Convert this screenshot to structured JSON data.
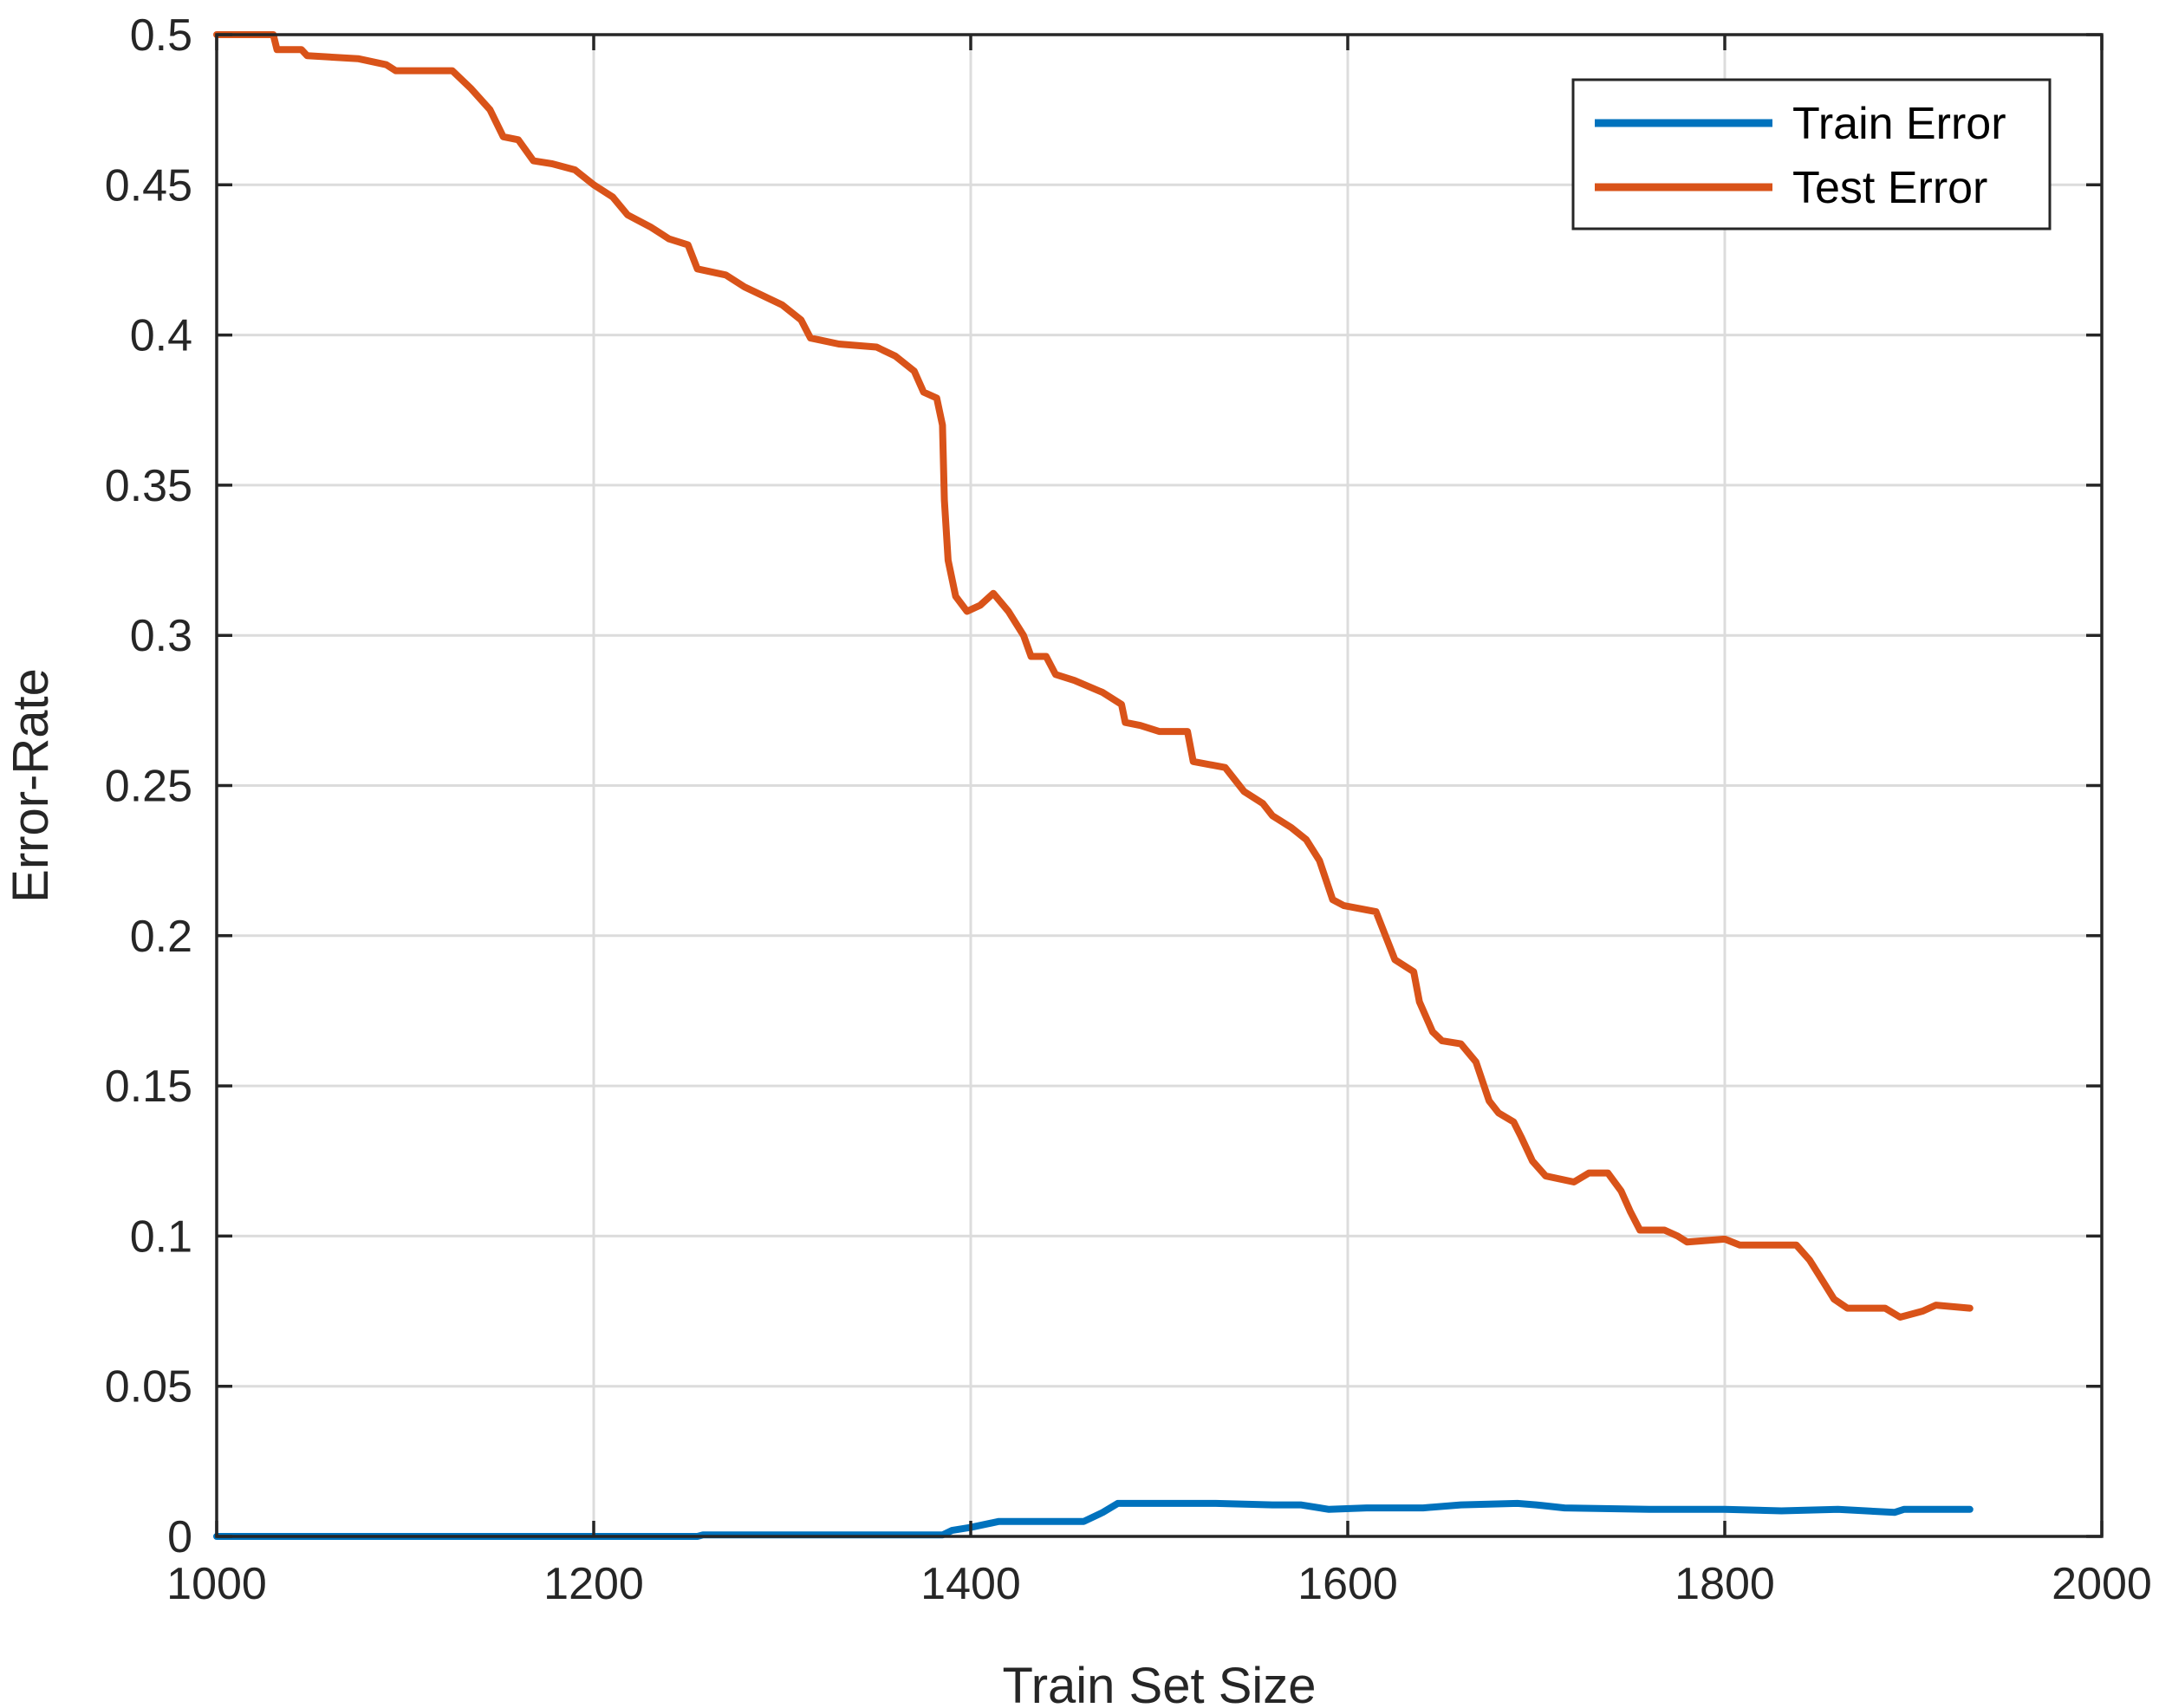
{
  "chart_data": {
    "type": "line",
    "title": "",
    "xlabel": "Train Set Size",
    "ylabel": "Error-Rate",
    "xlim": [
      1000,
      2000
    ],
    "ylim": [
      0,
      0.5
    ],
    "xticks": [
      1000,
      1200,
      1400,
      1600,
      1800,
      2000
    ],
    "yticks": [
      0,
      0.05,
      0.1,
      0.15,
      0.2,
      0.25,
      0.3,
      0.35,
      0.4,
      0.45,
      0.5
    ],
    "xtick_labels": [
      "1000",
      "1200",
      "1400",
      "1600",
      "1800",
      "2000"
    ],
    "ytick_labels": [
      "0",
      "0.05",
      "0.1",
      "0.15",
      "0.2",
      "0.25",
      "0.3",
      "0.35",
      "0.4",
      "0.45",
      "0.5"
    ],
    "grid": true,
    "legend_position": "top-right",
    "series": [
      {
        "name": "Train Error",
        "color": "#0072BD",
        "points": [
          [
            1000,
            0
          ],
          [
            1255,
            0
          ],
          [
            1258,
            0.0005
          ],
          [
            1385,
            0.0005
          ],
          [
            1390,
            0.002
          ],
          [
            1400,
            0.003
          ],
          [
            1415,
            0.005
          ],
          [
            1460,
            0.005
          ],
          [
            1470,
            0.008
          ],
          [
            1478,
            0.011
          ],
          [
            1530,
            0.011
          ],
          [
            1560,
            0.0105
          ],
          [
            1575,
            0.0105
          ],
          [
            1590,
            0.009
          ],
          [
            1610,
            0.0095
          ],
          [
            1640,
            0.0095
          ],
          [
            1660,
            0.0105
          ],
          [
            1690,
            0.011
          ],
          [
            1700,
            0.0105
          ],
          [
            1715,
            0.0095
          ],
          [
            1760,
            0.009
          ],
          [
            1800,
            0.009
          ],
          [
            1830,
            0.0085
          ],
          [
            1860,
            0.009
          ],
          [
            1890,
            0.008
          ],
          [
            1895,
            0.009
          ],
          [
            1930,
            0.009
          ]
        ]
      },
      {
        "name": "Test Error",
        "color": "#D95319",
        "points": [
          [
            1000,
            0.5
          ],
          [
            1030,
            0.5
          ],
          [
            1032,
            0.495
          ],
          [
            1045,
            0.495
          ],
          [
            1048,
            0.493
          ],
          [
            1075,
            0.492
          ],
          [
            1090,
            0.49
          ],
          [
            1095,
            0.488
          ],
          [
            1125,
            0.488
          ],
          [
            1135,
            0.482
          ],
          [
            1145,
            0.475
          ],
          [
            1152,
            0.466
          ],
          [
            1160,
            0.465
          ],
          [
            1168,
            0.458
          ],
          [
            1178,
            0.457
          ],
          [
            1190,
            0.455
          ],
          [
            1200,
            0.45
          ],
          [
            1210,
            0.446
          ],
          [
            1218,
            0.44
          ],
          [
            1230,
            0.436
          ],
          [
            1240,
            0.432
          ],
          [
            1250,
            0.43
          ],
          [
            1255,
            0.422
          ],
          [
            1270,
            0.42
          ],
          [
            1280,
            0.416
          ],
          [
            1290,
            0.413
          ],
          [
            1300,
            0.41
          ],
          [
            1310,
            0.405
          ],
          [
            1315,
            0.399
          ],
          [
            1330,
            0.397
          ],
          [
            1350,
            0.396
          ],
          [
            1360,
            0.393
          ],
          [
            1370,
            0.388
          ],
          [
            1375,
            0.381
          ],
          [
            1382,
            0.379
          ],
          [
            1385,
            0.37
          ],
          [
            1386,
            0.345
          ],
          [
            1388,
            0.325
          ],
          [
            1392,
            0.313
          ],
          [
            1398,
            0.308
          ],
          [
            1405,
            0.31
          ],
          [
            1412,
            0.314
          ],
          [
            1420,
            0.308
          ],
          [
            1428,
            0.3
          ],
          [
            1432,
            0.293
          ],
          [
            1440,
            0.293
          ],
          [
            1445,
            0.287
          ],
          [
            1455,
            0.285
          ],
          [
            1470,
            0.281
          ],
          [
            1480,
            0.277
          ],
          [
            1482,
            0.271
          ],
          [
            1490,
            0.27
          ],
          [
            1500,
            0.268
          ],
          [
            1515,
            0.268
          ],
          [
            1518,
            0.258
          ],
          [
            1535,
            0.256
          ],
          [
            1545,
            0.248
          ],
          [
            1555,
            0.244
          ],
          [
            1560,
            0.24
          ],
          [
            1570,
            0.236
          ],
          [
            1578,
            0.232
          ],
          [
            1585,
            0.225
          ],
          [
            1592,
            0.212
          ],
          [
            1598,
            0.21
          ],
          [
            1615,
            0.208
          ],
          [
            1620,
            0.2
          ],
          [
            1625,
            0.192
          ],
          [
            1635,
            0.188
          ],
          [
            1638,
            0.178
          ],
          [
            1645,
            0.168
          ],
          [
            1650,
            0.165
          ],
          [
            1660,
            0.164
          ],
          [
            1668,
            0.158
          ],
          [
            1675,
            0.145
          ],
          [
            1680,
            0.141
          ],
          [
            1688,
            0.138
          ],
          [
            1692,
            0.133
          ],
          [
            1698,
            0.125
          ],
          [
            1705,
            0.12
          ],
          [
            1720,
            0.118
          ],
          [
            1728,
            0.121
          ],
          [
            1738,
            0.121
          ],
          [
            1745,
            0.115
          ],
          [
            1750,
            0.108
          ],
          [
            1755,
            0.102
          ],
          [
            1768,
            0.102
          ],
          [
            1775,
            0.1
          ],
          [
            1780,
            0.098
          ],
          [
            1800,
            0.099
          ],
          [
            1808,
            0.097
          ],
          [
            1838,
            0.097
          ],
          [
            1845,
            0.092
          ],
          [
            1852,
            0.085
          ],
          [
            1858,
            0.079
          ],
          [
            1865,
            0.076
          ],
          [
            1885,
            0.076
          ],
          [
            1893,
            0.073
          ],
          [
            1905,
            0.075
          ],
          [
            1912,
            0.077
          ],
          [
            1930,
            0.076
          ]
        ]
      }
    ]
  }
}
